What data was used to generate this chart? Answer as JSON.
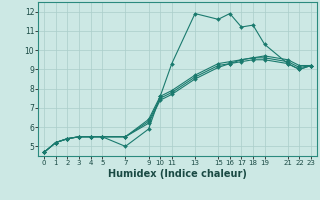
{
  "bg_color": "#cce8e4",
  "grid_color": "#aaceca",
  "line_color": "#1a7a6e",
  "marker_color": "#1a7a6e",
  "xlabel": "Humidex (Indice chaleur)",
  "xlabel_fontsize": 7,
  "xlim": [
    -0.5,
    23.5
  ],
  "ylim": [
    4.5,
    12.5
  ],
  "xticks": [
    0,
    1,
    2,
    3,
    4,
    5,
    7,
    9,
    10,
    11,
    13,
    15,
    16,
    17,
    18,
    19,
    21,
    22,
    23
  ],
  "yticks": [
    5,
    6,
    7,
    8,
    9,
    10,
    11,
    12
  ],
  "series": [
    {
      "x": [
        0,
        1,
        2,
        3,
        4,
        5,
        7,
        9,
        10,
        11,
        13,
        15,
        16,
        17,
        18,
        19,
        21,
        22,
        23
      ],
      "y": [
        4.7,
        5.2,
        5.4,
        5.5,
        5.5,
        5.5,
        5.0,
        5.9,
        7.6,
        9.3,
        11.9,
        11.6,
        11.9,
        11.2,
        11.3,
        10.3,
        9.3,
        9.0,
        9.2
      ]
    },
    {
      "x": [
        0,
        1,
        2,
        3,
        4,
        5,
        7,
        9,
        10,
        11,
        13,
        15,
        16,
        17,
        18,
        19,
        21,
        22,
        23
      ],
      "y": [
        4.7,
        5.2,
        5.4,
        5.5,
        5.5,
        5.5,
        5.5,
        6.2,
        7.4,
        7.7,
        8.5,
        9.1,
        9.3,
        9.4,
        9.5,
        9.5,
        9.3,
        9.0,
        9.2
      ]
    },
    {
      "x": [
        0,
        1,
        2,
        3,
        4,
        5,
        7,
        9,
        10,
        11,
        13,
        15,
        16,
        17,
        18,
        19,
        21,
        22,
        23
      ],
      "y": [
        4.7,
        5.2,
        5.4,
        5.5,
        5.5,
        5.5,
        5.5,
        6.3,
        7.5,
        7.8,
        8.6,
        9.2,
        9.3,
        9.5,
        9.6,
        9.6,
        9.4,
        9.1,
        9.2
      ]
    },
    {
      "x": [
        0,
        1,
        2,
        3,
        4,
        5,
        7,
        9,
        10,
        11,
        13,
        15,
        16,
        17,
        18,
        19,
        21,
        22,
        23
      ],
      "y": [
        4.7,
        5.2,
        5.4,
        5.5,
        5.5,
        5.5,
        5.5,
        6.4,
        7.6,
        7.9,
        8.7,
        9.3,
        9.4,
        9.5,
        9.6,
        9.7,
        9.5,
        9.2,
        9.2
      ]
    }
  ]
}
